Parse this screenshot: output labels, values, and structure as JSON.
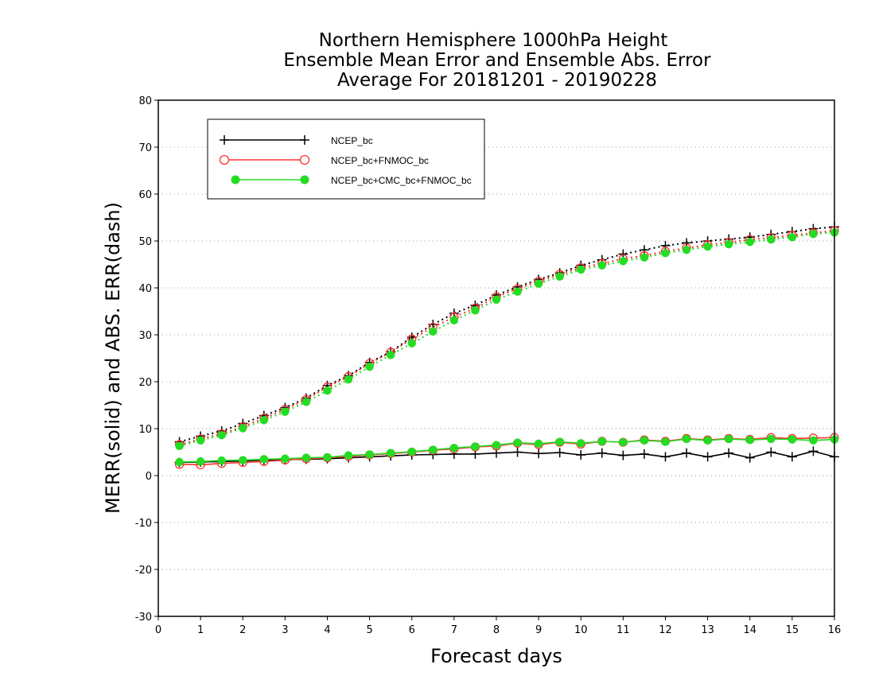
{
  "chart_data": {
    "type": "line",
    "title": [
      "Northern Hemisphere 1000hPa Height",
      "Ensemble Mean Error and Ensemble Abs. Error",
      "Average For 20181201 - 20190228"
    ],
    "xlabel": "Forecast days",
    "ylabel": "MERR(solid) and ABS. ERR(dash)",
    "xlim": [
      0,
      16
    ],
    "ylim": [
      -30,
      80
    ],
    "xticks": [
      "0",
      "1",
      "2",
      "3",
      "4",
      "5",
      "6",
      "7",
      "8",
      "9",
      "10",
      "11",
      "12",
      "13",
      "14",
      "15",
      "16"
    ],
    "yticks": [
      "-30",
      "-20",
      "-10",
      "0",
      "10",
      "20",
      "30",
      "40",
      "50",
      "60",
      "70",
      "80"
    ],
    "grid": "horizontal dotted",
    "legend_position": "top-left",
    "x": [
      0.5,
      1,
      1.5,
      2,
      2.5,
      3,
      3.5,
      4,
      4.5,
      5,
      5.5,
      6,
      6.5,
      7,
      7.5,
      8,
      8.5,
      9,
      9.5,
      10,
      10.5,
      11,
      11.5,
      12,
      12.5,
      13,
      13.5,
      14,
      14.5,
      15,
      15.5,
      16
    ],
    "series": [
      {
        "name": "NCEP_bc",
        "color": "#000000",
        "marker": "plus",
        "merr": [
          2.8,
          2.9,
          3.0,
          3.1,
          3.3,
          3.4,
          3.5,
          3.6,
          3.8,
          4.0,
          4.2,
          4.4,
          4.5,
          4.6,
          4.6,
          4.8,
          5.0,
          4.7,
          4.9,
          4.4,
          4.8,
          4.3,
          4.6,
          4.0,
          4.8,
          4.0,
          4.8,
          3.8,
          5.0,
          4.0,
          5.2,
          4.0
        ],
        "abs_err": [
          7.2,
          8.4,
          9.5,
          11.1,
          12.8,
          14.5,
          16.5,
          19.2,
          21.3,
          24.1,
          26.4,
          29.5,
          32.2,
          34.6,
          36.3,
          38.5,
          40.2,
          41.8,
          43.2,
          44.8,
          46.0,
          47.2,
          48.1,
          49.0,
          49.6,
          50.0,
          50.4,
          50.8,
          51.4,
          52.0,
          52.6,
          53.0
        ]
      },
      {
        "name": "NCEP_bc+FNMOC_bc",
        "color": "#ff3030",
        "marker": "open-circle",
        "merr": [
          2.4,
          2.3,
          2.6,
          2.8,
          3.0,
          3.3,
          3.6,
          3.8,
          4.1,
          4.4,
          4.7,
          5.0,
          5.4,
          5.7,
          6.1,
          6.3,
          6.9,
          6.6,
          7.1,
          6.7,
          7.3,
          7.1,
          7.6,
          7.3,
          7.9,
          7.6,
          7.9,
          7.7,
          8.1,
          7.9,
          8.0,
          8.1
        ],
        "abs_err": [
          6.6,
          7.8,
          8.9,
          10.4,
          12.2,
          14.1,
          16.2,
          18.9,
          21.1,
          23.9,
          26.3,
          29.1,
          31.6,
          33.8,
          35.7,
          38.1,
          39.8,
          41.4,
          42.9,
          44.3,
          45.2,
          46.2,
          46.9,
          47.8,
          48.5,
          49.2,
          49.7,
          50.3,
          50.7,
          51.2,
          51.7,
          52.2
        ]
      },
      {
        "name": "NCEP_bc+CMC_bc+FNMOC_bc",
        "color": "#22dd22",
        "marker": "filled-circle",
        "merr": [
          2.9,
          3.0,
          3.2,
          3.3,
          3.5,
          3.6,
          3.8,
          3.9,
          4.3,
          4.5,
          4.8,
          5.1,
          5.5,
          5.9,
          6.2,
          6.5,
          7.0,
          6.8,
          7.2,
          6.9,
          7.3,
          7.1,
          7.5,
          7.2,
          7.8,
          7.5,
          7.8,
          7.6,
          7.8,
          7.7,
          7.5,
          7.7
        ],
        "abs_err": [
          6.3,
          7.5,
          8.6,
          10.1,
          11.8,
          13.6,
          15.7,
          18.1,
          20.5,
          23.2,
          25.7,
          28.2,
          30.7,
          33.1,
          35.2,
          37.5,
          39.2,
          40.9,
          42.4,
          43.9,
          44.8,
          45.7,
          46.5,
          47.4,
          48.1,
          48.8,
          49.3,
          49.8,
          50.3,
          50.8,
          51.5,
          51.8
        ]
      }
    ]
  }
}
